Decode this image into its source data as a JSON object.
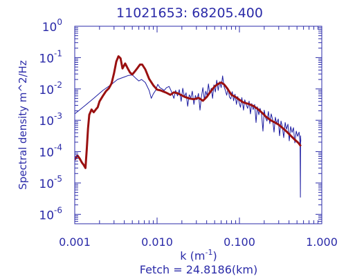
{
  "chart_data": {
    "type": "line",
    "title": "11021653: 68205.400",
    "xlabel": "k (m",
    "xlabel_sup": "-1",
    "xlabel_close": ")",
    "ylabel": "Spectral density m^2/Hz",
    "footer": "Fetch = 24.8186(km)",
    "x_scale": "log",
    "y_scale": "log",
    "xlim": [
      0.001,
      1.0
    ],
    "ylim": [
      5e-07,
      1.0
    ],
    "grid": false,
    "x_ticks": [
      {
        "value": 0.001,
        "label": "0.001"
      },
      {
        "value": 0.01,
        "label": "0.010"
      },
      {
        "value": 0.1,
        "label": "0.100"
      },
      {
        "value": 1.0,
        "label": "1.000"
      }
    ],
    "y_ticks": [
      {
        "value": 1e-06,
        "base": "10",
        "exp": "-6"
      },
      {
        "value": 1e-05,
        "base": "10",
        "exp": "-5"
      },
      {
        "value": 0.0001,
        "base": "10",
        "exp": "-4"
      },
      {
        "value": 0.001,
        "base": "10",
        "exp": "-3"
      },
      {
        "value": 0.01,
        "base": "10",
        "exp": "-2"
      },
      {
        "value": 0.1,
        "base": "10",
        "exp": "-1"
      },
      {
        "value": 1,
        "base": "10",
        "exp": "0"
      }
    ],
    "colors": {
      "axes": "#2a2aa8",
      "thin_series": "#1a1aa0",
      "thick_series": "#9a1010"
    },
    "series": [
      {
        "style": "thin",
        "color": "#1a1aa0",
        "points": [
          [
            0.001,
            0.0016
          ],
          [
            0.0013,
            0.0028
          ],
          [
            0.0017,
            0.005
          ],
          [
            0.0022,
            0.009
          ],
          [
            0.0028,
            0.014
          ],
          [
            0.0033,
            0.02
          ],
          [
            0.004,
            0.024
          ],
          [
            0.0045,
            0.027
          ],
          [
            0.005,
            0.028
          ],
          [
            0.0055,
            0.022
          ],
          [
            0.006,
            0.018
          ],
          [
            0.0065,
            0.02
          ],
          [
            0.0072,
            0.016
          ],
          [
            0.008,
            0.009
          ],
          [
            0.0085,
            0.005
          ],
          [
            0.009,
            0.007
          ],
          [
            0.0096,
            0.009
          ],
          [
            0.0102,
            0.014
          ],
          [
            0.0108,
            0.011
          ],
          [
            0.0115,
            0.01
          ],
          [
            0.0122,
            0.009
          ],
          [
            0.013,
            0.011
          ],
          [
            0.014,
            0.012
          ],
          [
            0.015,
            0.008
          ],
          [
            0.016,
            0.005
          ],
          [
            0.0168,
            0.009
          ],
          [
            0.0177,
            0.006
          ],
          [
            0.0186,
            0.0095
          ],
          [
            0.0196,
            0.004
          ],
          [
            0.0205,
            0.0105
          ],
          [
            0.0215,
            0.0055
          ],
          [
            0.0225,
            0.0075
          ],
          [
            0.0235,
            0.0028
          ],
          [
            0.0246,
            0.0065
          ],
          [
            0.0257,
            0.0052
          ],
          [
            0.0268,
            0.0085
          ],
          [
            0.028,
            0.0032
          ],
          [
            0.0292,
            0.0062
          ],
          [
            0.0305,
            0.0045
          ],
          [
            0.0318,
            0.0072
          ],
          [
            0.0332,
            0.0021
          ],
          [
            0.0345,
            0.0055
          ],
          [
            0.036,
            0.011
          ],
          [
            0.0375,
            0.0045
          ],
          [
            0.039,
            0.0085
          ],
          [
            0.0405,
            0.006
          ],
          [
            0.042,
            0.0145
          ],
          [
            0.0437,
            0.007
          ],
          [
            0.0455,
            0.0105
          ],
          [
            0.0472,
            0.005
          ],
          [
            0.049,
            0.0135
          ],
          [
            0.051,
            0.008
          ],
          [
            0.053,
            0.019
          ],
          [
            0.0552,
            0.009
          ],
          [
            0.0575,
            0.017
          ],
          [
            0.06,
            0.011
          ],
          [
            0.0625,
            0.026
          ],
          [
            0.065,
            0.012
          ],
          [
            0.0675,
            0.009
          ],
          [
            0.07,
            0.0063
          ],
          [
            0.0728,
            0.0105
          ],
          [
            0.0757,
            0.0055
          ],
          [
            0.0787,
            0.0048
          ],
          [
            0.0818,
            0.0082
          ],
          [
            0.085,
            0.0042
          ],
          [
            0.0884,
            0.0068
          ],
          [
            0.092,
            0.0032
          ],
          [
            0.0955,
            0.0057
          ],
          [
            0.0993,
            0.0036
          ],
          [
            0.103,
            0.0026
          ],
          [
            0.107,
            0.0053
          ],
          [
            0.112,
            0.0021
          ],
          [
            0.116,
            0.0045
          ],
          [
            0.121,
            0.0031
          ],
          [
            0.126,
            0.0024
          ],
          [
            0.131,
            0.0041
          ],
          [
            0.136,
            0.0016
          ],
          [
            0.141,
            0.0034
          ],
          [
            0.147,
            0.0022
          ],
          [
            0.153,
            0.0032
          ],
          [
            0.159,
            0.00085
          ],
          [
            0.165,
            0.0027
          ],
          [
            0.172,
            0.0015
          ],
          [
            0.178,
            0.0024
          ],
          [
            0.185,
            0.0017
          ],
          [
            0.193,
            0.00045
          ],
          [
            0.2,
            0.0021
          ],
          [
            0.208,
            0.0012
          ],
          [
            0.216,
            0.00095
          ],
          [
            0.225,
            0.0019
          ],
          [
            0.234,
            0.00078
          ],
          [
            0.243,
            0.0016
          ],
          [
            0.253,
            0.00105
          ],
          [
            0.263,
            0.00042
          ],
          [
            0.273,
            0.00125
          ],
          [
            0.284,
            0.00078
          ],
          [
            0.296,
            0.0011
          ],
          [
            0.307,
            0.00032
          ],
          [
            0.32,
            0.00095
          ],
          [
            0.332,
            0.00062
          ],
          [
            0.345,
            0.00028
          ],
          [
            0.359,
            0.00085
          ],
          [
            0.373,
            0.00052
          ],
          [
            0.388,
            0.00075
          ],
          [
            0.403,
            0.00022
          ],
          [
            0.419,
            0.00063
          ],
          [
            0.436,
            0.00041
          ],
          [
            0.453,
            0.00058
          ],
          [
            0.471,
            0.00019
          ],
          [
            0.49,
            0.00045
          ],
          [
            0.509,
            0.00031
          ],
          [
            0.53,
            0.00042
          ],
          [
            0.545,
            0.00018
          ],
          [
            0.55,
            3.5e-06
          ],
          [
            0.553,
            0.00032
          ],
          [
            0.556,
            0.00021
          ]
        ]
      },
      {
        "style": "thick",
        "color": "#9a1010",
        "points": [
          [
            0.001,
            5.5e-05
          ],
          [
            0.00108,
            7.5e-05
          ],
          [
            0.00115,
            6e-05
          ],
          [
            0.00122,
            4.5e-05
          ],
          [
            0.00128,
            3.8e-05
          ],
          [
            0.00135,
            3e-05
          ],
          [
            0.0014,
            0.00012
          ],
          [
            0.00145,
            0.00055
          ],
          [
            0.0015,
            0.0015
          ],
          [
            0.0016,
            0.0022
          ],
          [
            0.0017,
            0.0018
          ],
          [
            0.0018,
            0.0022
          ],
          [
            0.0019,
            0.0026
          ],
          [
            0.002,
            0.004
          ],
          [
            0.0022,
            0.006
          ],
          [
            0.0024,
            0.0085
          ],
          [
            0.0026,
            0.0105
          ],
          [
            0.0028,
            0.015
          ],
          [
            0.003,
            0.032
          ],
          [
            0.0032,
            0.075
          ],
          [
            0.0034,
            0.11
          ],
          [
            0.0036,
            0.095
          ],
          [
            0.0038,
            0.045
          ],
          [
            0.0041,
            0.065
          ],
          [
            0.0044,
            0.045
          ],
          [
            0.0047,
            0.033
          ],
          [
            0.005,
            0.029
          ],
          [
            0.0054,
            0.037
          ],
          [
            0.0058,
            0.047
          ],
          [
            0.0062,
            0.06
          ],
          [
            0.0066,
            0.06
          ],
          [
            0.0072,
            0.042
          ],
          [
            0.008,
            0.021
          ],
          [
            0.009,
            0.013
          ],
          [
            0.01,
            0.0095
          ],
          [
            0.011,
            0.009
          ],
          [
            0.012,
            0.0082
          ],
          [
            0.013,
            0.0075
          ],
          [
            0.0145,
            0.0065
          ],
          [
            0.016,
            0.0078
          ],
          [
            0.018,
            0.0072
          ],
          [
            0.02,
            0.0062
          ],
          [
            0.022,
            0.0055
          ],
          [
            0.025,
            0.0049
          ],
          [
            0.028,
            0.0047
          ],
          [
            0.032,
            0.0052
          ],
          [
            0.036,
            0.0042
          ],
          [
            0.04,
            0.0055
          ],
          [
            0.045,
            0.0085
          ],
          [
            0.05,
            0.012
          ],
          [
            0.055,
            0.0145
          ],
          [
            0.06,
            0.016
          ],
          [
            0.065,
            0.014
          ],
          [
            0.07,
            0.011
          ],
          [
            0.08,
            0.0065
          ],
          [
            0.09,
            0.0055
          ],
          [
            0.1,
            0.0045
          ],
          [
            0.11,
            0.0038
          ],
          [
            0.12,
            0.0035
          ],
          [
            0.13,
            0.0033
          ],
          [
            0.15,
            0.0028
          ],
          [
            0.17,
            0.0022
          ],
          [
            0.19,
            0.0017
          ],
          [
            0.21,
            0.0013
          ],
          [
            0.24,
            0.001
          ],
          [
            0.27,
            0.00085
          ],
          [
            0.3,
            0.00072
          ],
          [
            0.34,
            0.00055
          ],
          [
            0.38,
            0.00042
          ],
          [
            0.42,
            0.00032
          ],
          [
            0.47,
            0.00024
          ],
          [
            0.52,
            0.00019
          ],
          [
            0.556,
            0.00015
          ]
        ]
      }
    ]
  }
}
